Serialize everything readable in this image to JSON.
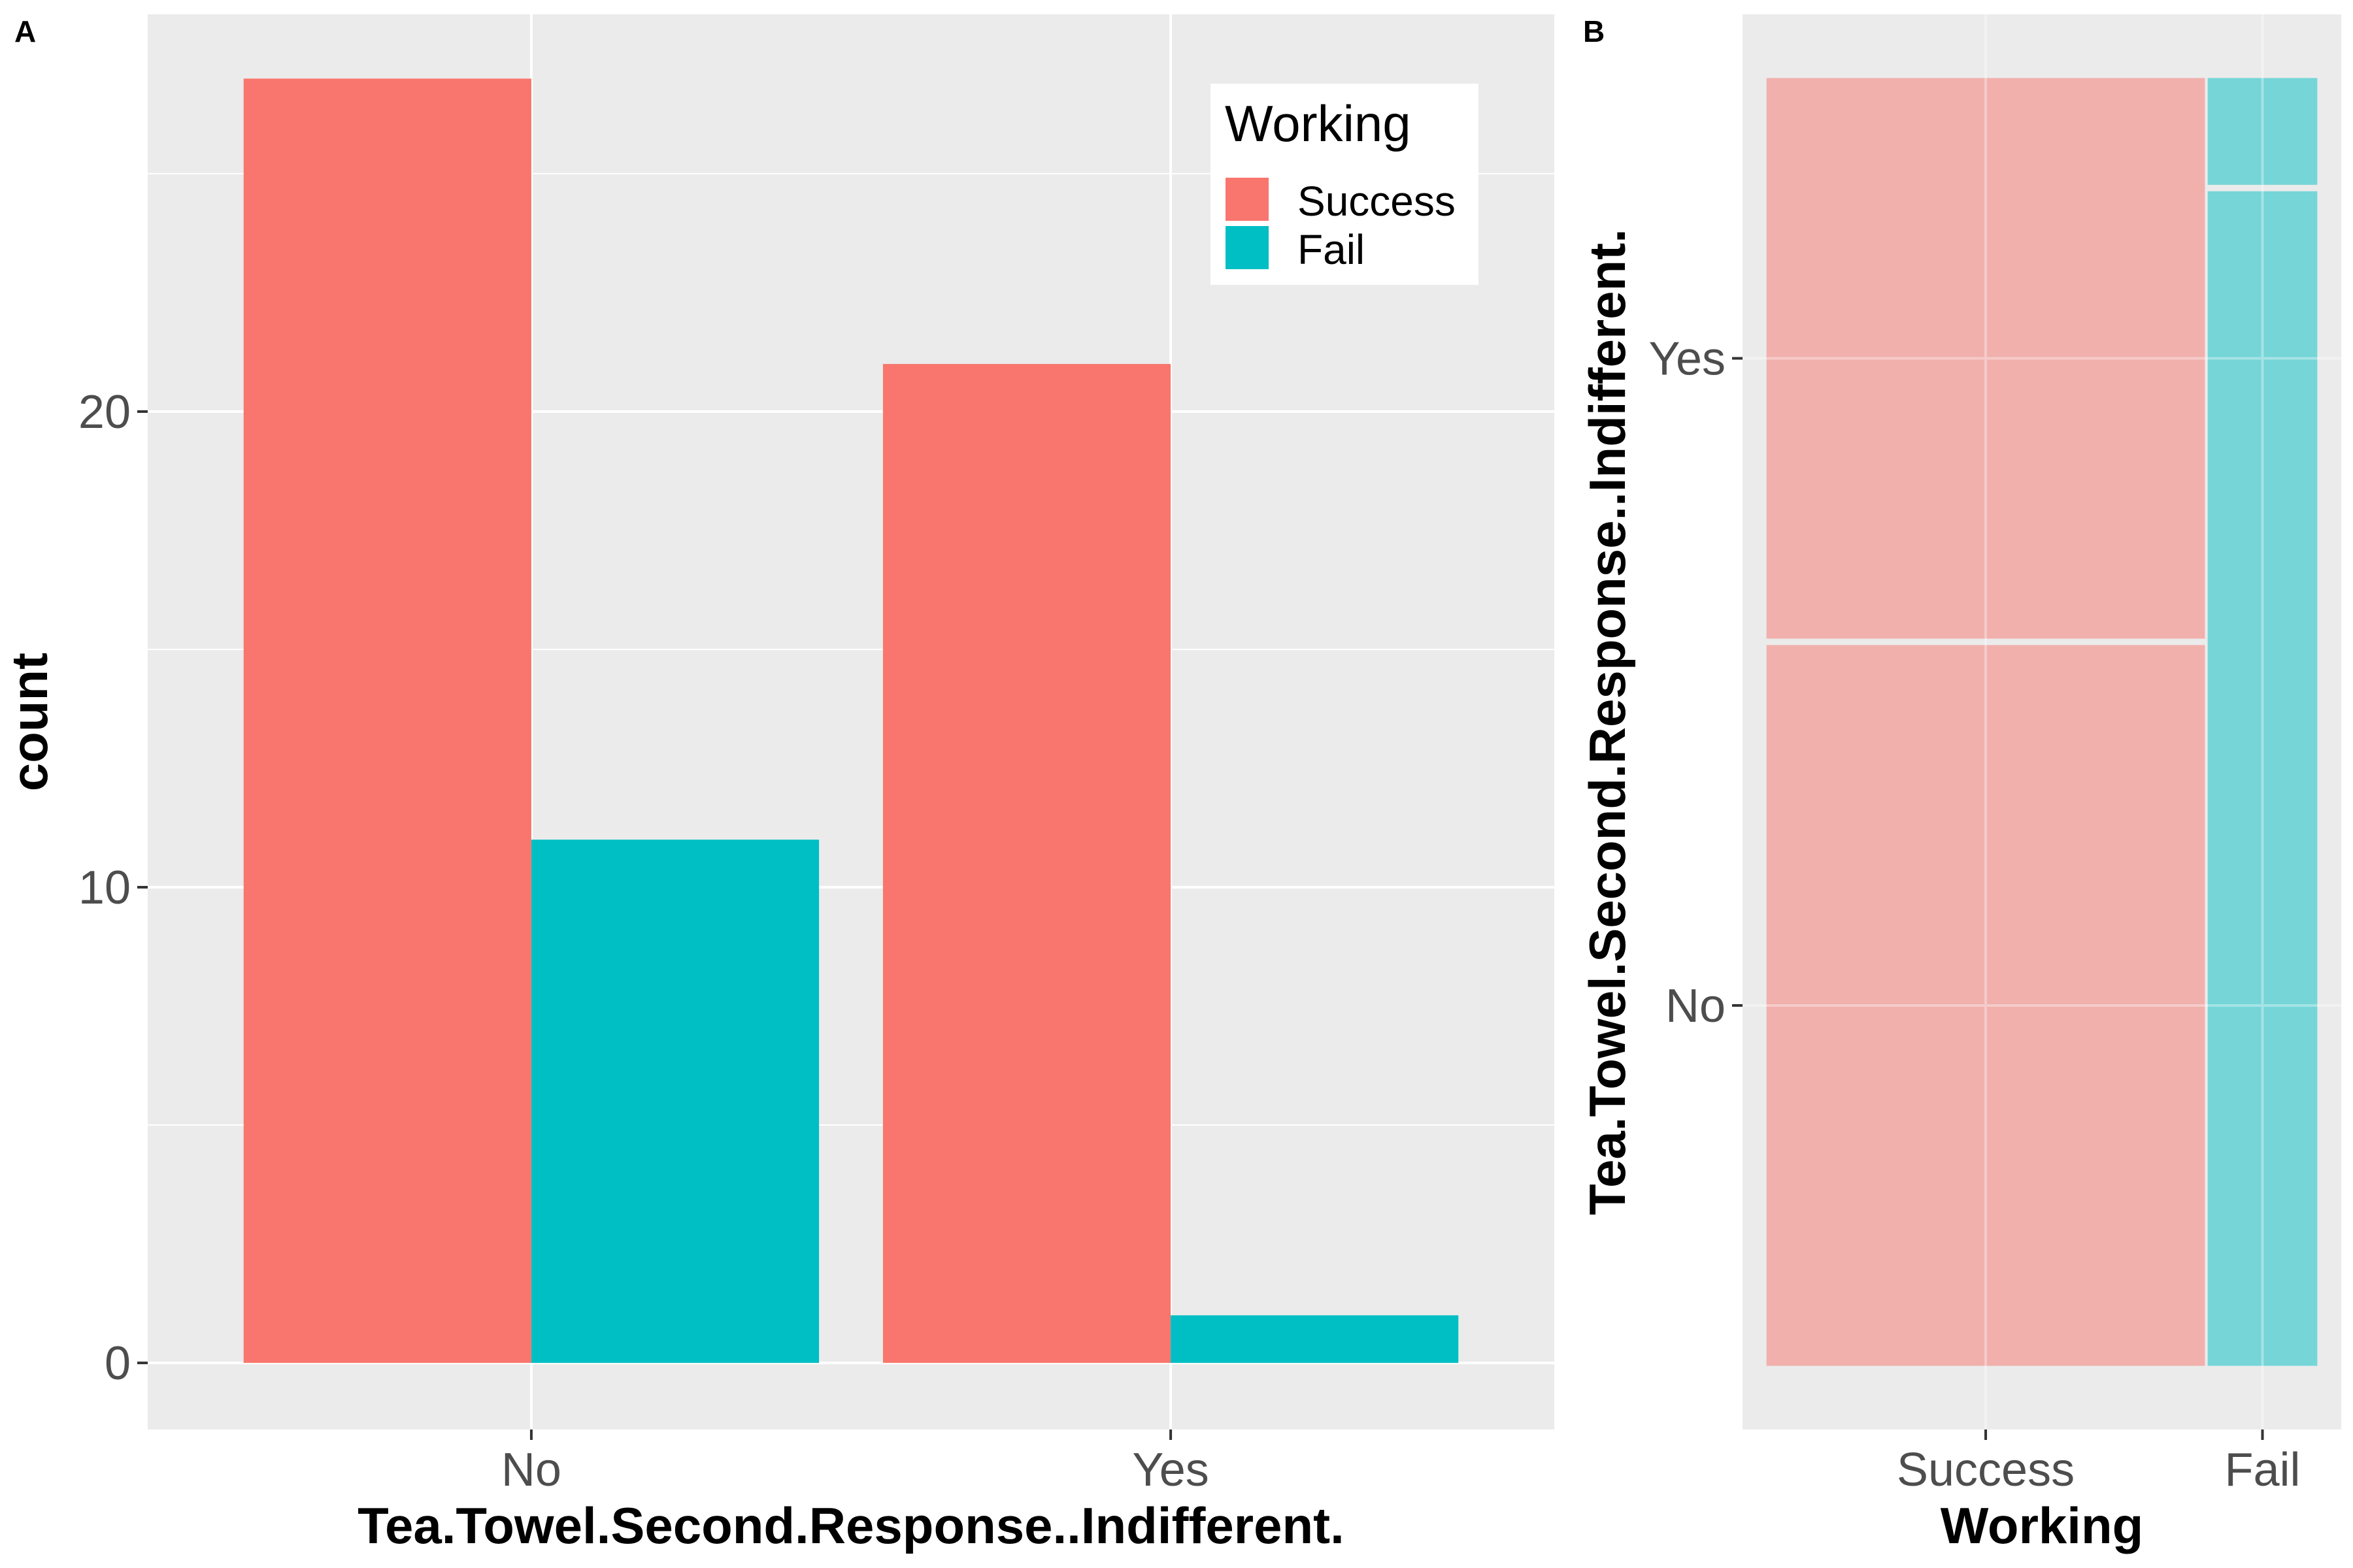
{
  "colors": {
    "success": "#F8766D",
    "fail": "#00BFC4",
    "panel_bg": "#EBEBEB",
    "grid": "#FFFFFF",
    "tick_text": "#4D4D4D"
  },
  "legend": {
    "title": "Working",
    "items": [
      {
        "label": "Success",
        "color": "#F8766D"
      },
      {
        "label": "Fail",
        "color": "#00BFC4"
      }
    ],
    "placement": "top-right"
  },
  "chart_data": [
    {
      "panel": "A",
      "type": "bar",
      "categories": [
        "No",
        "Yes"
      ],
      "series": [
        {
          "name": "Success",
          "values": [
            27,
            21
          ]
        },
        {
          "name": "Fail",
          "values": [
            11,
            1
          ]
        }
      ],
      "xlabel": "Tea.Towel.Second.Response..Indifferent.",
      "ylabel": "count",
      "ylim": [
        -1.4,
        28.35
      ],
      "yticks": [
        0,
        10,
        20
      ],
      "grid": true
    },
    {
      "panel": "B",
      "type": "mosaic",
      "xlabel": "Working",
      "ylabel": "Tea.Towel.Second.Response..Indifferent.",
      "x_categories": [
        "Success",
        "Fail"
      ],
      "y_categories": [
        "No",
        "Yes"
      ],
      "counts": {
        "Success": {
          "No": 27,
          "Yes": 21
        },
        "Fail": {
          "No": 11,
          "Yes": 1
        }
      },
      "grid": true
    }
  ]
}
